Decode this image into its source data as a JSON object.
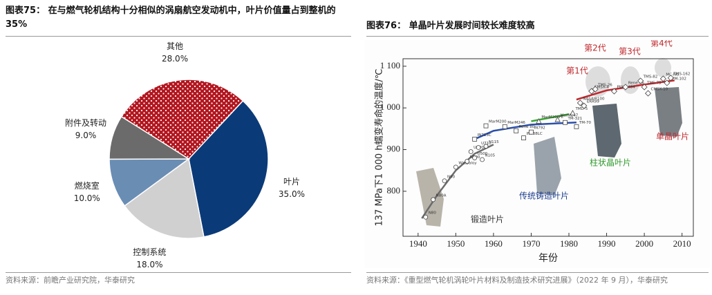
{
  "figures": [
    {
      "title": "图表75：  在与燃气轮机结构十分相似的涡扇航空发动机中，叶片价值量占到整机的 35%",
      "source": "资料来源：前瞻产业研究院，华泰研究"
    },
    {
      "title": "图表76：  单晶叶片发展时间较长难度较高",
      "source": "资料来源：《重型燃气轮机涡轮叶片材料及制造技术研究进展》（2022 年 9 月），华泰研究"
    }
  ],
  "chart_data": [
    {
      "type": "pie",
      "categories": [
        "叶片",
        "控制系统",
        "燃烧室",
        "附件及转动",
        "其他"
      ],
      "values": [
        35,
        18,
        10,
        9,
        28
      ],
      "value_labels": [
        "35.0%",
        "18.0%",
        "10.0%",
        "9.0%",
        "28.0%"
      ],
      "colors": [
        "#0b3a78",
        "#d0d0d0",
        "#6a8db4",
        "#6b6b6b",
        "#b3161f"
      ]
    },
    {
      "type": "scatter",
      "xlabel": "年份",
      "ylabel": "137 MPa下1 000 h蠕变寿命的温度/℃",
      "xlim": [
        1936,
        2013
      ],
      "ylim": [
        692,
        1118
      ],
      "xticks": [
        1940,
        1950,
        1960,
        1970,
        1980,
        1990,
        2000,
        2010
      ],
      "yticks": [
        {
          "value": 800,
          "label": "800"
        },
        {
          "value": 900,
          "label": "900"
        },
        {
          "value": 1000,
          "label": "1 000"
        },
        {
          "value": 1100,
          "label": "1 100"
        }
      ],
      "lines": [
        {
          "color": "#6b6b6b",
          "x": [
            1941,
            1945,
            1950,
            1955,
            1960
          ],
          "values": [
            735,
            790,
            850,
            890,
            912
          ]
        },
        {
          "color": "#2a4fa8",
          "x": [
            1955,
            1960,
            1970,
            1982
          ],
          "values": [
            925,
            945,
            960,
            965
          ]
        },
        {
          "color": "#3aa534",
          "x": [
            1970,
            1980
          ],
          "values": [
            968,
            985
          ]
        },
        {
          "color": "#c0282d",
          "x": [
            1982,
            1990,
            2000,
            2008
          ],
          "values": [
            1020,
            1042,
            1056,
            1066
          ]
        }
      ],
      "series": [
        {
          "marker": "circle",
          "x": [
            1942,
            1944,
            1947,
            1950,
            1953,
            1955,
            1957,
            1954,
            1956,
            1958
          ],
          "values": [
            738,
            780,
            825,
            858,
            872,
            880,
            876,
            895,
            905,
            908
          ],
          "labels": [
            "N80",
            "N80A",
            "N90",
            "Waspaloy",
            "N100",
            "U500",
            "N105",
            "U700",
            "U710",
            "N115"
          ]
        },
        {
          "marker": "square",
          "x": [
            1955,
            1958,
            1963,
            1966,
            1968,
            1970,
            1979,
            1982
          ],
          "values": [
            925,
            957,
            955,
            945,
            928,
            942,
            965,
            955
          ],
          "labels": [
            "IN713C",
            "MarM200",
            "MarM246",
            "Rene 80",
            "IN738LC",
            "IN792",
            "TM-321",
            "TM-70"
          ]
        },
        {
          "marker": "triangle",
          "x": [
            1972,
            1977,
            1981
          ],
          "values": [
            968,
            972,
            988
          ],
          "labels": [
            "MarM200Hf",
            "MarM247",
            "TMD-5"
          ]
        },
        {
          "marker": "diamond",
          "x": [
            1983,
            1984,
            1986,
            1987,
            1992,
            1995,
            1999,
            2000,
            2001,
            2005,
            2006,
            2007
          ],
          "values": [
            1012,
            1005,
            1040,
            1045,
            1040,
            1050,
            1065,
            1050,
            1035,
            1070,
            1060,
            1072
          ],
          "labels": [
            "NASAIR100",
            "ERR99",
            "CMSX-4",
            "TMS-26",
            "PWA1484",
            "Rene N6",
            "TMS-82",
            "TMS-75",
            "CMSX-10",
            "MC-NG",
            "EPM-102",
            "TMS-162"
          ]
        }
      ],
      "annotations": [
        {
          "text": "第1代",
          "color": "#c0282d"
        },
        {
          "text": "第2代",
          "color": "#c0282d"
        },
        {
          "text": "第3代",
          "color": "#c0282d"
        },
        {
          "text": "第4代",
          "color": "#c0282d"
        },
        {
          "text": "锻造叶片",
          "color": "#333333"
        },
        {
          "text": "传统铸造叶片",
          "color": "#1f3f8f"
        },
        {
          "text": "柱状晶叶片",
          "color": "#2f9a2a"
        },
        {
          "text": "单晶叶片",
          "color": "#c0282d"
        }
      ]
    }
  ]
}
